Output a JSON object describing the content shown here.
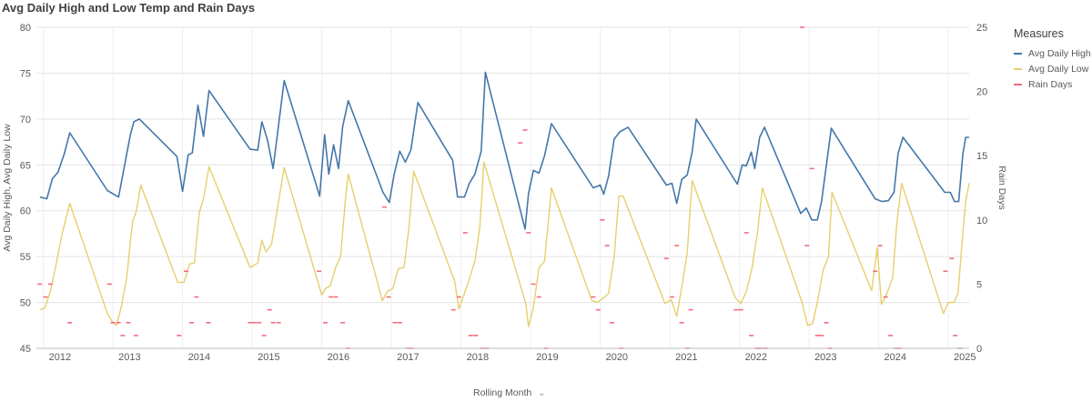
{
  "title": "Avg Daily High and Low Temp and Rain Days",
  "legend": {
    "title": "Measures",
    "items": [
      {
        "label": "Avg Daily High",
        "color": "#4477aa"
      },
      {
        "label": "Avg Daily Low",
        "color": "#e6cf6e"
      },
      {
        "label": "Rain Days",
        "color": "#f26c7d"
      }
    ]
  },
  "x_axis_title": "Rolling Month",
  "chart_data": {
    "type": "line",
    "title": "Avg Daily High and Low Temp and Rain Days",
    "xlabel": "Rolling Month",
    "ylabel": "Avg Daily High,  Avg Daily Low",
    "y2label": "Rain Days",
    "ylim": [
      45,
      80
    ],
    "y2lim": [
      0,
      25
    ],
    "yticks": [
      45,
      50,
      55,
      60,
      65,
      70,
      75,
      80
    ],
    "y2ticks": [
      0,
      5,
      10,
      15,
      20,
      25
    ],
    "xlim": [
      2011.9,
      2025.3
    ],
    "year_ticks": [
      2012,
      2013,
      2014,
      2015,
      2016,
      2017,
      2018,
      2019,
      2020,
      2021,
      2022,
      2023,
      2024,
      2025
    ],
    "grid": true,
    "legend_position": "right",
    "series": [
      {
        "name": "Avg Daily High",
        "axis": "left",
        "color": "#4477aa",
        "points": [
          [
            2011.95,
            61.5
          ],
          [
            2012.05,
            61.3
          ],
          [
            2012.13,
            63.5
          ],
          [
            2012.21,
            64.2
          ],
          [
            2012.3,
            66.2
          ],
          [
            2012.38,
            68.5
          ],
          [
            2012.92,
            62.2
          ],
          [
            2013.08,
            61.5
          ],
          [
            2013.25,
            68.3
          ],
          [
            2013.3,
            69.7
          ],
          [
            2013.38,
            70.0
          ],
          [
            2013.92,
            65.9
          ],
          [
            2014.0,
            62.1
          ],
          [
            2014.08,
            66.1
          ],
          [
            2014.14,
            66.3
          ],
          [
            2014.22,
            71.5
          ],
          [
            2014.3,
            68.1
          ],
          [
            2014.38,
            73.1
          ],
          [
            2014.97,
            66.7
          ],
          [
            2015.08,
            66.6
          ],
          [
            2015.14,
            69.7
          ],
          [
            2015.22,
            67.7
          ],
          [
            2015.3,
            64.6
          ],
          [
            2015.46,
            74.2
          ],
          [
            2015.97,
            61.6
          ],
          [
            2016.04,
            68.3
          ],
          [
            2016.1,
            64.0
          ],
          [
            2016.17,
            67.2
          ],
          [
            2016.24,
            64.6
          ],
          [
            2016.3,
            69.2
          ],
          [
            2016.38,
            72.0
          ],
          [
            2016.88,
            62.0
          ],
          [
            2016.97,
            60.9
          ],
          [
            2017.04,
            64.0
          ],
          [
            2017.12,
            66.5
          ],
          [
            2017.2,
            65.3
          ],
          [
            2017.28,
            66.6
          ],
          [
            2017.38,
            71.8
          ],
          [
            2017.88,
            65.5
          ],
          [
            2017.95,
            61.5
          ],
          [
            2018.05,
            61.5
          ],
          [
            2018.12,
            63.0
          ],
          [
            2018.2,
            64.0
          ],
          [
            2018.29,
            66.5
          ],
          [
            2018.35,
            75.1
          ],
          [
            2018.92,
            58.0
          ],
          [
            2018.97,
            61.9
          ],
          [
            2019.04,
            64.4
          ],
          [
            2019.12,
            64.1
          ],
          [
            2019.2,
            66.0
          ],
          [
            2019.3,
            69.5
          ],
          [
            2019.9,
            62.5
          ],
          [
            2020.0,
            62.8
          ],
          [
            2020.05,
            61.8
          ],
          [
            2020.12,
            63.8
          ],
          [
            2020.2,
            67.8
          ],
          [
            2020.28,
            68.6
          ],
          [
            2020.4,
            69.1
          ],
          [
            2020.95,
            62.8
          ],
          [
            2021.03,
            63.0
          ],
          [
            2021.1,
            60.8
          ],
          [
            2021.17,
            63.4
          ],
          [
            2021.25,
            63.9
          ],
          [
            2021.32,
            66.4
          ],
          [
            2021.38,
            70.0
          ],
          [
            2021.97,
            62.9
          ],
          [
            2022.04,
            65.0
          ],
          [
            2022.1,
            64.9
          ],
          [
            2022.17,
            66.4
          ],
          [
            2022.22,
            64.6
          ],
          [
            2022.29,
            68.0
          ],
          [
            2022.36,
            69.1
          ],
          [
            2022.88,
            59.7
          ],
          [
            2022.96,
            60.3
          ],
          [
            2023.04,
            59.0
          ],
          [
            2023.12,
            59.0
          ],
          [
            2023.18,
            61.0
          ],
          [
            2023.32,
            69.0
          ],
          [
            2023.95,
            61.3
          ],
          [
            2024.05,
            61.0
          ],
          [
            2024.14,
            61.1
          ],
          [
            2024.22,
            62.0
          ],
          [
            2024.28,
            66.3
          ],
          [
            2024.35,
            68.0
          ],
          [
            2024.95,
            62.0
          ],
          [
            2025.03,
            62.0
          ],
          [
            2025.09,
            61.0
          ],
          [
            2025.15,
            61.0
          ],
          [
            2025.21,
            66.2
          ],
          [
            2025.25,
            68.0
          ],
          [
            2025.3,
            68.0
          ]
        ]
      },
      {
        "name": "Avg Daily Low",
        "axis": "left",
        "color": "#e6cf6e",
        "points": [
          [
            2011.95,
            49.2
          ],
          [
            2012.02,
            49.4
          ],
          [
            2012.1,
            51.2
          ],
          [
            2012.18,
            54.0
          ],
          [
            2012.27,
            57.5
          ],
          [
            2012.38,
            60.8
          ],
          [
            2012.92,
            48.8
          ],
          [
            2013.0,
            47.8
          ],
          [
            2013.05,
            47.5
          ],
          [
            2013.12,
            49.5
          ],
          [
            2013.2,
            52.8
          ],
          [
            2013.28,
            58.8
          ],
          [
            2013.33,
            59.8
          ],
          [
            2013.4,
            62.8
          ],
          [
            2013.93,
            52.2
          ],
          [
            2014.02,
            52.2
          ],
          [
            2014.1,
            54.2
          ],
          [
            2014.17,
            54.3
          ],
          [
            2014.24,
            59.8
          ],
          [
            2014.3,
            61.3
          ],
          [
            2014.38,
            64.8
          ],
          [
            2014.97,
            53.8
          ],
          [
            2015.08,
            54.3
          ],
          [
            2015.14,
            56.8
          ],
          [
            2015.2,
            55.5
          ],
          [
            2015.28,
            56.4
          ],
          [
            2015.46,
            64.7
          ],
          [
            2016.0,
            50.8
          ],
          [
            2016.05,
            51.5
          ],
          [
            2016.12,
            51.8
          ],
          [
            2016.2,
            53.8
          ],
          [
            2016.27,
            55.0
          ],
          [
            2016.34,
            61.3
          ],
          [
            2016.38,
            64.0
          ],
          [
            2016.87,
            50.2
          ],
          [
            2016.94,
            51.2
          ],
          [
            2017.02,
            51.5
          ],
          [
            2017.1,
            53.7
          ],
          [
            2017.18,
            53.8
          ],
          [
            2017.25,
            58.0
          ],
          [
            2017.32,
            64.3
          ],
          [
            2017.91,
            52.3
          ],
          [
            2017.97,
            49.3
          ],
          [
            2018.05,
            51.0
          ],
          [
            2018.12,
            52.6
          ],
          [
            2018.2,
            54.5
          ],
          [
            2018.27,
            58.3
          ],
          [
            2018.33,
            65.3
          ],
          [
            2018.93,
            49.9
          ],
          [
            2018.97,
            47.4
          ],
          [
            2019.04,
            49.5
          ],
          [
            2019.12,
            53.8
          ],
          [
            2019.2,
            54.5
          ],
          [
            2019.3,
            62.5
          ],
          [
            2019.88,
            50.2
          ],
          [
            2019.96,
            50.0
          ],
          [
            2020.05,
            50.5
          ],
          [
            2020.12,
            51.0
          ],
          [
            2020.2,
            55.0
          ],
          [
            2020.27,
            61.6
          ],
          [
            2020.33,
            61.6
          ],
          [
            2020.93,
            49.9
          ],
          [
            2021.02,
            50.3
          ],
          [
            2021.1,
            48.5
          ],
          [
            2021.18,
            52.1
          ],
          [
            2021.25,
            55.4
          ],
          [
            2021.32,
            63.3
          ],
          [
            2021.94,
            50.5
          ],
          [
            2022.02,
            49.9
          ],
          [
            2022.1,
            51.2
          ],
          [
            2022.18,
            53.7
          ],
          [
            2022.26,
            57.7
          ],
          [
            2022.33,
            62.5
          ],
          [
            2022.9,
            50.0
          ],
          [
            2022.98,
            47.5
          ],
          [
            2023.05,
            47.7
          ],
          [
            2023.12,
            50.0
          ],
          [
            2023.2,
            53.5
          ],
          [
            2023.28,
            55.0
          ],
          [
            2023.33,
            62.0
          ],
          [
            2023.9,
            51.3
          ],
          [
            2023.98,
            56.0
          ],
          [
            2024.04,
            49.8
          ],
          [
            2024.12,
            51.0
          ],
          [
            2024.2,
            52.7
          ],
          [
            2024.26,
            58.5
          ],
          [
            2024.33,
            63.0
          ],
          [
            2024.93,
            48.8
          ],
          [
            2025.0,
            50.0
          ],
          [
            2025.08,
            50.0
          ],
          [
            2025.14,
            51.0
          ],
          [
            2025.2,
            56.8
          ],
          [
            2025.25,
            61.0
          ],
          [
            2025.3,
            63.0
          ]
        ]
      },
      {
        "name": "Rain Days",
        "axis": "right",
        "color": "#f26c7d",
        "type": "scatter",
        "points": [
          [
            2011.95,
            5
          ],
          [
            2012.03,
            4
          ],
          [
            2012.1,
            5
          ],
          [
            2012.38,
            2
          ],
          [
            2012.95,
            5
          ],
          [
            2013.0,
            2
          ],
          [
            2013.08,
            2
          ],
          [
            2013.14,
            1
          ],
          [
            2013.22,
            2
          ],
          [
            2013.33,
            1
          ],
          [
            2013.95,
            1
          ],
          [
            2014.05,
            6
          ],
          [
            2014.13,
            2
          ],
          [
            2014.2,
            4
          ],
          [
            2014.37,
            2
          ],
          [
            2014.97,
            2
          ],
          [
            2015.03,
            2
          ],
          [
            2015.1,
            2
          ],
          [
            2015.17,
            1
          ],
          [
            2015.25,
            3
          ],
          [
            2015.3,
            2
          ],
          [
            2015.38,
            2
          ],
          [
            2015.96,
            6
          ],
          [
            2016.05,
            2
          ],
          [
            2016.13,
            4
          ],
          [
            2016.2,
            4
          ],
          [
            2016.3,
            2
          ],
          [
            2016.38,
            0
          ],
          [
            2016.9,
            11
          ],
          [
            2016.96,
            4
          ],
          [
            2017.05,
            2
          ],
          [
            2017.12,
            2
          ],
          [
            2017.24,
            0
          ],
          [
            2017.3,
            0
          ],
          [
            2017.89,
            3
          ],
          [
            2017.97,
            4
          ],
          [
            2018.06,
            9
          ],
          [
            2018.14,
            1
          ],
          [
            2018.21,
            1
          ],
          [
            2018.3,
            0
          ],
          [
            2018.37,
            0
          ],
          [
            2018.85,
            16
          ],
          [
            2018.92,
            17
          ],
          [
            2018.97,
            9
          ],
          [
            2019.04,
            5
          ],
          [
            2019.12,
            4
          ],
          [
            2019.22,
            0
          ],
          [
            2019.9,
            4
          ],
          [
            2019.97,
            3
          ],
          [
            2020.03,
            10
          ],
          [
            2020.1,
            8
          ],
          [
            2020.17,
            2
          ],
          [
            2020.3,
            0
          ],
          [
            2020.95,
            7
          ],
          [
            2021.03,
            4
          ],
          [
            2021.1,
            8
          ],
          [
            2021.17,
            2
          ],
          [
            2021.25,
            0
          ],
          [
            2021.3,
            3
          ],
          [
            2021.95,
            3
          ],
          [
            2022.02,
            3
          ],
          [
            2022.1,
            9
          ],
          [
            2022.17,
            1
          ],
          [
            2022.25,
            0
          ],
          [
            2022.3,
            0
          ],
          [
            2022.37,
            0
          ],
          [
            2022.9,
            25
          ],
          [
            2022.97,
            8
          ],
          [
            2023.04,
            14
          ],
          [
            2023.12,
            1
          ],
          [
            2023.18,
            1
          ],
          [
            2023.25,
            2
          ],
          [
            2023.3,
            0
          ],
          [
            2023.95,
            6
          ],
          [
            2024.02,
            8
          ],
          [
            2024.1,
            4
          ],
          [
            2024.17,
            1
          ],
          [
            2024.25,
            0
          ],
          [
            2024.3,
            0
          ],
          [
            2024.96,
            6
          ],
          [
            2025.05,
            7
          ],
          [
            2025.1,
            1
          ],
          [
            2025.17,
            0
          ]
        ]
      }
    ]
  }
}
